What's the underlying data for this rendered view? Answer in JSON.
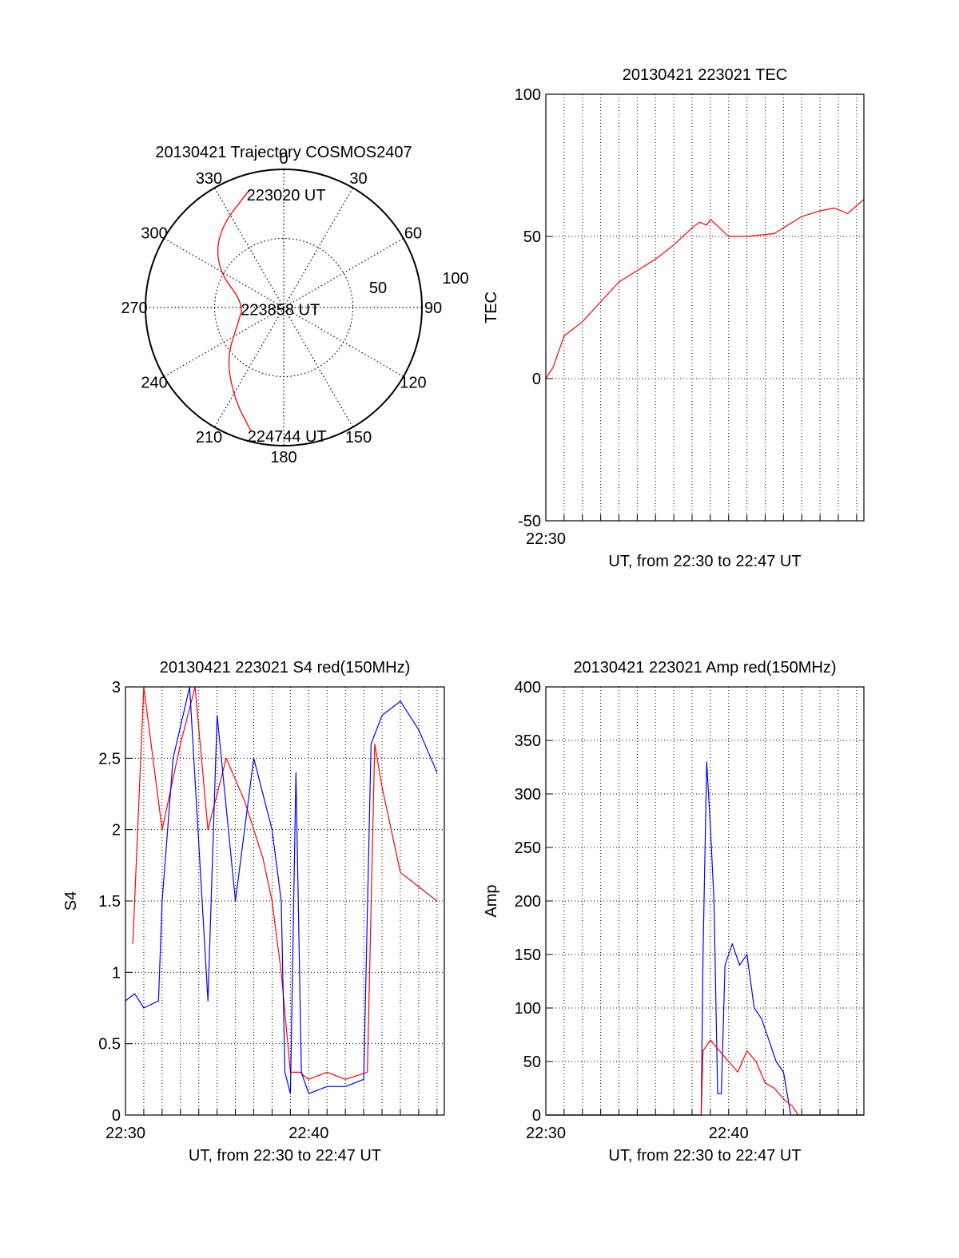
{
  "chart_data": [
    {
      "type": "polar",
      "title": "20130421 Trajectory COSMOS2407",
      "angle_labels": [
        "0",
        "30",
        "60",
        "90",
        "120",
        "150",
        "180",
        "210",
        "240",
        "270",
        "300",
        "330"
      ],
      "radius_labels": [
        "50",
        "100"
      ],
      "trajectory": {
        "color": "#ff0000",
        "points": [
          {
            "azimuth": 344,
            "elevation": 10
          },
          {
            "azimuth": 320,
            "elevation": 24
          },
          {
            "azimuth": 300,
            "elevation": 40
          },
          {
            "azimuth": 275,
            "elevation": 64
          },
          {
            "azimuth": 250,
            "elevation": 58
          },
          {
            "azimuth": 228,
            "elevation": 40
          },
          {
            "azimuth": 208,
            "elevation": 22
          },
          {
            "azimuth": 195,
            "elevation": 7
          }
        ]
      },
      "annotations": [
        {
          "text": "223020 UT",
          "azimuth": 344,
          "elevation": 10
        },
        {
          "text": "223858 UT",
          "azimuth": 275,
          "elevation": 64
        },
        {
          "text": "224744 UT",
          "azimuth": 195,
          "elevation": 7
        }
      ]
    },
    {
      "type": "line",
      "title": "20130421 223021 TEC",
      "xlabel": "UT, from 22:30 to 22:47 UT",
      "ylabel": "TEC",
      "xlim": [
        0,
        17.4
      ],
      "ylim": [
        -50,
        100
      ],
      "y_ticks": [
        "-50",
        "0",
        "50",
        "100"
      ],
      "x_ticks": [
        {
          "value": 0,
          "label": "22:30"
        }
      ],
      "grid": true,
      "series": [
        {
          "color": "#ff0000",
          "x": [
            0,
            0.4,
            1.0,
            2.0,
            3.0,
            4.0,
            5.0,
            6.0,
            7.0,
            8.0,
            8.4,
            8.8,
            9.0,
            10.0,
            11.0,
            12.5,
            13.0,
            14.0,
            15.0,
            15.8,
            16.5,
            17.4
          ],
          "y": [
            0,
            4,
            15,
            20,
            27,
            34,
            38,
            42,
            47,
            53,
            55,
            54,
            56,
            50,
            50,
            51,
            53,
            57,
            59,
            60,
            58,
            63
          ]
        }
      ]
    },
    {
      "type": "line",
      "title": "20130421 223021 S4 red(150MHz)",
      "xlabel": "UT, from 22:30 to 22:47 UT",
      "ylabel": "S4",
      "xlim": [
        0,
        17.4
      ],
      "ylim": [
        0,
        3
      ],
      "y_ticks": [
        "0",
        "0.5",
        "1",
        "1.5",
        "2",
        "2.5",
        "3"
      ],
      "x_ticks": [
        {
          "value": 0,
          "label": "22:30"
        },
        {
          "value": 10,
          "label": "22:40"
        }
      ],
      "grid": true,
      "series": [
        {
          "color": "#ff0000",
          "x": [
            0.4,
            1.0,
            2.0,
            3.0,
            3.8,
            4.5,
            5.5,
            6.5,
            7.5,
            8.0,
            8.5,
            9.0,
            9.5,
            10.0,
            11.0,
            12.0,
            13.2,
            13.6,
            14.0,
            15.0,
            16.0,
            17.0
          ],
          "y": [
            1.2,
            3.0,
            2.0,
            2.6,
            3.0,
            2.0,
            2.5,
            2.2,
            1.8,
            1.5,
            1.0,
            0.3,
            0.3,
            0.25,
            0.3,
            0.25,
            0.3,
            2.6,
            2.3,
            1.7,
            1.6,
            1.5
          ]
        },
        {
          "color": "#0000ff",
          "x": [
            0,
            0.5,
            1.0,
            1.8,
            2.0,
            2.6,
            3.5,
            4.5,
            5.0,
            6.0,
            7.0,
            8.0,
            8.5,
            8.7,
            9.0,
            9.3,
            9.6,
            10.0,
            11.0,
            12.0,
            13.0,
            13.4,
            14.0,
            15.0,
            16.0,
            17.0
          ],
          "y": [
            0.8,
            0.85,
            0.75,
            0.8,
            1.5,
            2.5,
            3.0,
            0.8,
            2.8,
            1.5,
            2.5,
            2.0,
            1.5,
            0.3,
            0.15,
            2.4,
            0.3,
            0.15,
            0.2,
            0.2,
            0.25,
            2.6,
            2.8,
            2.9,
            2.7,
            2.4
          ]
        }
      ]
    },
    {
      "type": "line",
      "title": "20130421 223021 Amp red(150MHz)",
      "xlabel": "UT, from 22:30 to 22:47 UT",
      "ylabel": "Amp",
      "xlim": [
        0,
        17.4
      ],
      "ylim": [
        0,
        400
      ],
      "y_ticks": [
        "0",
        "50",
        "100",
        "150",
        "200",
        "250",
        "300",
        "350",
        "400"
      ],
      "x_ticks": [
        {
          "value": 0,
          "label": "22:30"
        },
        {
          "value": 10,
          "label": "22:40"
        }
      ],
      "grid": true,
      "series": [
        {
          "color": "#0000ff",
          "x": [
            0,
            8.5,
            8.6,
            8.8,
            9.0,
            9.2,
            9.4,
            9.6,
            9.8,
            10.2,
            10.6,
            11.0,
            11.4,
            11.8,
            12.2,
            12.6,
            13.0,
            13.4,
            17.4
          ],
          "y": [
            0,
            0,
            150,
            330,
            270,
            200,
            20,
            20,
            140,
            160,
            140,
            150,
            100,
            90,
            70,
            50,
            40,
            0,
            0
          ]
        },
        {
          "color": "#ff0000",
          "x": [
            0,
            8.5,
            8.6,
            9.0,
            9.5,
            10.0,
            10.5,
            11.0,
            11.5,
            12.0,
            12.5,
            13.0,
            13.5,
            13.8,
            17.4
          ],
          "y": [
            0,
            0,
            60,
            70,
            60,
            50,
            40,
            60,
            50,
            30,
            25,
            15,
            8,
            0,
            0
          ]
        }
      ]
    }
  ]
}
